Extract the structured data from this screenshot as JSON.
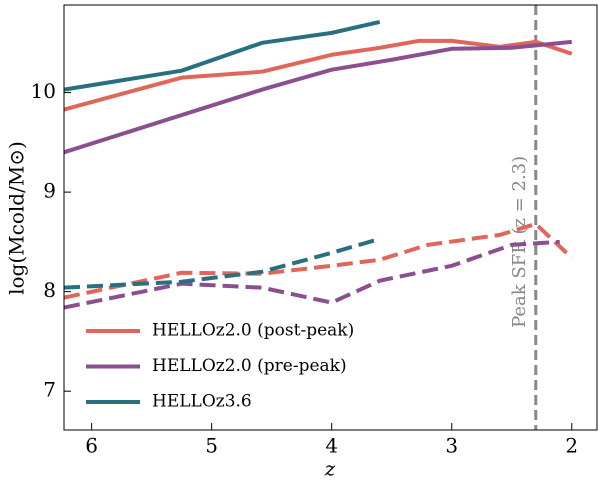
{
  "chart_data": {
    "type": "line",
    "xlabel": "z",
    "ylabel": "log(Mcold/M⊙)",
    "xlim": [
      6.23,
      1.79
    ],
    "ylim": [
      6.61,
      10.88
    ],
    "xticks": [
      6,
      5,
      4,
      3,
      2
    ],
    "yticks": [
      7,
      8,
      9,
      10
    ],
    "vline": 2.3,
    "vline_color": "#888888",
    "annotation": "Peak SFR (z = 2.3)",
    "legend": "lower left",
    "series": [
      {
        "name": "HELLOz2.0 (post-peak)",
        "color": "#e0665a",
        "linestyle": "solid",
        "x": [
          6.23,
          5.25,
          4.58,
          4.0,
          3.6,
          3.27,
          3.0,
          2.6,
          2.3,
          2.0
        ],
        "values": [
          9.83,
          10.15,
          10.21,
          10.38,
          10.45,
          10.52,
          10.52,
          10.46,
          10.51,
          10.39
        ]
      },
      {
        "name": "HELLOz2.0 (pre-peak)",
        "color": "#8b4f8f",
        "linestyle": "solid",
        "x": [
          6.23,
          4.58,
          4.0,
          3.5,
          3.0,
          2.5,
          2.0
        ],
        "values": [
          9.4,
          10.03,
          10.23,
          10.33,
          10.44,
          10.45,
          10.51
        ]
      },
      {
        "name": "HELLOz3.6",
        "color": "#28707f",
        "linestyle": "solid",
        "x": [
          6.23,
          5.25,
          4.58,
          4.0,
          3.6
        ],
        "values": [
          10.03,
          10.22,
          10.5,
          10.6,
          10.71
        ]
      },
      {
        "color": "#e0665a",
        "linestyle": "dashed",
        "x": [
          6.23,
          5.25,
          4.58,
          4.0,
          3.6,
          3.2,
          2.6,
          2.3,
          2.0
        ],
        "values": [
          7.94,
          8.19,
          8.18,
          8.26,
          8.32,
          8.47,
          8.57,
          8.68,
          8.34
        ]
      },
      {
        "color": "#8b4f8f",
        "linestyle": "dashed",
        "x": [
          6.23,
          5.25,
          4.58,
          4.0,
          3.6,
          3.0,
          2.5,
          2.1
        ],
        "values": [
          7.84,
          8.08,
          8.04,
          7.89,
          8.11,
          8.26,
          8.47,
          8.5
        ]
      },
      {
        "color": "#28707f",
        "linestyle": "dashed",
        "x": [
          6.23,
          5.25,
          4.58,
          4.0,
          3.6
        ],
        "values": [
          8.04,
          8.1,
          8.2,
          8.39,
          8.53
        ]
      }
    ]
  }
}
